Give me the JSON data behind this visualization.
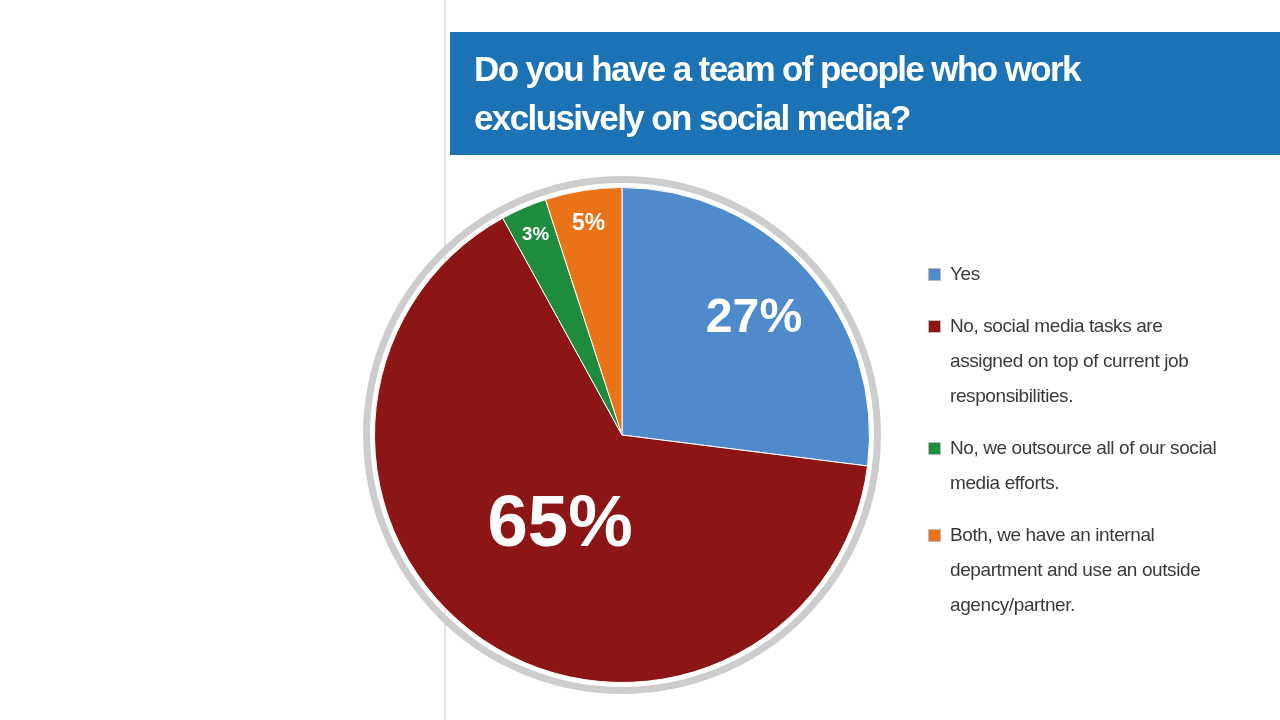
{
  "chart_data": {
    "type": "pie",
    "title": "Do you have a team of people who work exclusively on social media?",
    "categories": [
      "Yes",
      "No, social media tasks are assigned on top of current job responsibilities.",
      "No, we outsource all of our social media efforts.",
      "Both, we have an internal department and use an outside agency/partner."
    ],
    "values": [
      27,
      65,
      3,
      5
    ],
    "colors": [
      "#4f8bcb",
      "#8c1515",
      "#1e8c3c",
      "#ea7317"
    ],
    "value_labels": [
      "27%",
      "65%",
      "3%",
      "5%"
    ],
    "legend": "right"
  }
}
